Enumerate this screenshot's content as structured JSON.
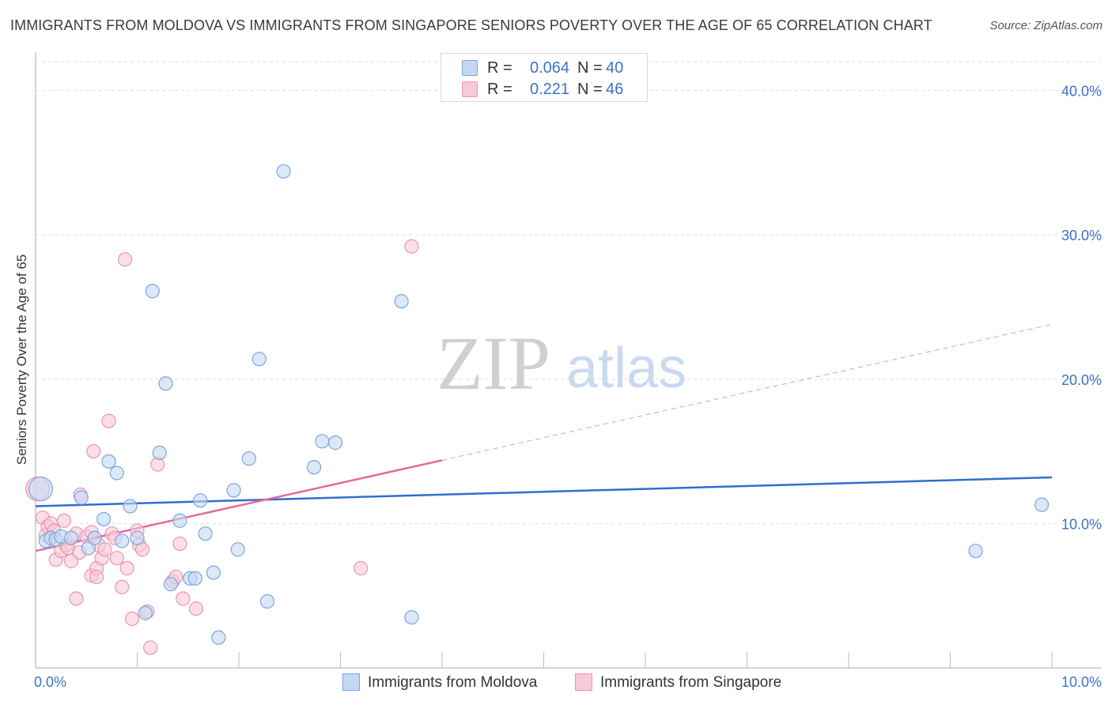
{
  "header": {
    "title": "IMMIGRANTS FROM MOLDOVA VS IMMIGRANTS FROM SINGAPORE SENIORS POVERTY OVER THE AGE OF 65 CORRELATION CHART",
    "source": "Source: ZipAtlas.com"
  },
  "watermark": {
    "zip": "ZIP",
    "atlas": "atlas"
  },
  "legend": {
    "r_label": "R =",
    "n_label": "N =",
    "series": [
      {
        "name": "Immigrants from Moldova",
        "r": "0.064",
        "n": "40"
      },
      {
        "name": "Immigrants from Singapore",
        "r": "0.221",
        "n": "46"
      }
    ]
  },
  "chart_data": {
    "type": "scatter",
    "title": "IMMIGRANTS FROM MOLDOVA VS IMMIGRANTS FROM SINGAPORE SENIORS POVERTY OVER THE AGE OF 65 CORRELATION CHART",
    "xlabel": "",
    "ylabel": "Seniors Poverty Over the Age of 65",
    "xlim": [
      0,
      10
    ],
    "ylim": [
      0,
      42
    ],
    "x_tick_labels": [
      "0.0%",
      "10.0%"
    ],
    "y_ticks": [
      10,
      20,
      30,
      40
    ],
    "y_tick_labels": [
      "10.0%",
      "20.0%",
      "30.0%",
      "40.0%"
    ],
    "grid": true,
    "legend_position": "top-center",
    "colors": {
      "moldova_fill": "#c5d8f3",
      "moldova_stroke": "#7aa5de",
      "moldova_line": "#2f6fcd",
      "singapore_fill": "#f8c9d8",
      "singapore_stroke": "#ec94b2",
      "singapore_line": "#e46b97",
      "axis_text": "#3a73c9",
      "grid": "#dddddd"
    },
    "series": [
      {
        "name": "Immigrants from Moldova",
        "trend": {
          "x0": 0,
          "y0": 11.2,
          "x1": 10,
          "y1": 13.2,
          "dashed_from": null
        },
        "points": [
          {
            "x": 0.05,
            "y": 12.4,
            "big": true
          },
          {
            "x": 0.1,
            "y": 8.8
          },
          {
            "x": 0.15,
            "y": 9.0
          },
          {
            "x": 0.2,
            "y": 8.9
          },
          {
            "x": 0.25,
            "y": 9.1
          },
          {
            "x": 0.35,
            "y": 9.0
          },
          {
            "x": 0.45,
            "y": 11.8
          },
          {
            "x": 0.52,
            "y": 8.3
          },
          {
            "x": 0.58,
            "y": 9.0
          },
          {
            "x": 0.67,
            "y": 10.3
          },
          {
            "x": 0.72,
            "y": 14.3
          },
          {
            "x": 0.8,
            "y": 13.5
          },
          {
            "x": 0.85,
            "y": 8.8
          },
          {
            "x": 0.93,
            "y": 11.2
          },
          {
            "x": 1.0,
            "y": 9.0
          },
          {
            "x": 1.08,
            "y": 3.8
          },
          {
            "x": 1.15,
            "y": 26.1
          },
          {
            "x": 1.22,
            "y": 14.9
          },
          {
            "x": 1.28,
            "y": 19.7
          },
          {
            "x": 1.33,
            "y": 5.8
          },
          {
            "x": 1.42,
            "y": 10.2
          },
          {
            "x": 1.52,
            "y": 6.2
          },
          {
            "x": 1.57,
            "y": 6.2
          },
          {
            "x": 1.62,
            "y": 11.6
          },
          {
            "x": 1.67,
            "y": 9.3
          },
          {
            "x": 1.75,
            "y": 6.6
          },
          {
            "x": 1.8,
            "y": 2.1
          },
          {
            "x": 1.95,
            "y": 12.3
          },
          {
            "x": 1.99,
            "y": 8.2
          },
          {
            "x": 2.1,
            "y": 14.5
          },
          {
            "x": 2.2,
            "y": 21.4
          },
          {
            "x": 2.28,
            "y": 4.6
          },
          {
            "x": 2.44,
            "y": 34.4
          },
          {
            "x": 2.74,
            "y": 13.9
          },
          {
            "x": 2.82,
            "y": 15.7
          },
          {
            "x": 2.95,
            "y": 15.6
          },
          {
            "x": 3.6,
            "y": 25.4
          },
          {
            "x": 3.7,
            "y": 3.5
          },
          {
            "x": 9.25,
            "y": 8.1
          },
          {
            "x": 9.9,
            "y": 11.3
          }
        ]
      },
      {
        "name": "Immigrants from Singapore",
        "trend": {
          "x0": 0,
          "y0": 8.1,
          "x1": 10,
          "y1": 23.8,
          "dashed_from": 4.0
        },
        "points": [
          {
            "x": 0.02,
            "y": 12.4,
            "big": true
          },
          {
            "x": 0.07,
            "y": 10.4
          },
          {
            "x": 0.1,
            "y": 9.2
          },
          {
            "x": 0.12,
            "y": 9.8
          },
          {
            "x": 0.15,
            "y": 10.0
          },
          {
            "x": 0.18,
            "y": 9.5
          },
          {
            "x": 0.2,
            "y": 7.5
          },
          {
            "x": 0.25,
            "y": 8.1
          },
          {
            "x": 0.28,
            "y": 10.2
          },
          {
            "x": 0.3,
            "y": 8.5
          },
          {
            "x": 0.32,
            "y": 8.3
          },
          {
            "x": 0.35,
            "y": 7.4
          },
          {
            "x": 0.4,
            "y": 9.3
          },
          {
            "x": 0.43,
            "y": 8.0
          },
          {
            "x": 0.4,
            "y": 4.8
          },
          {
            "x": 0.44,
            "y": 12.0
          },
          {
            "x": 0.5,
            "y": 9.1
          },
          {
            "x": 0.55,
            "y": 9.4
          },
          {
            "x": 0.55,
            "y": 6.4
          },
          {
            "x": 0.57,
            "y": 15.0
          },
          {
            "x": 0.6,
            "y": 6.9
          },
          {
            "x": 0.6,
            "y": 6.3
          },
          {
            "x": 0.62,
            "y": 8.5
          },
          {
            "x": 0.65,
            "y": 7.6
          },
          {
            "x": 0.68,
            "y": 8.2
          },
          {
            "x": 0.72,
            "y": 17.1
          },
          {
            "x": 0.75,
            "y": 9.3
          },
          {
            "x": 0.78,
            "y": 9.0
          },
          {
            "x": 0.8,
            "y": 7.6
          },
          {
            "x": 0.85,
            "y": 5.6
          },
          {
            "x": 0.9,
            "y": 6.9
          },
          {
            "x": 0.95,
            "y": 3.4
          },
          {
            "x": 1.02,
            "y": 8.5
          },
          {
            "x": 1.0,
            "y": 9.5
          },
          {
            "x": 1.05,
            "y": 8.2
          },
          {
            "x": 1.1,
            "y": 3.9
          },
          {
            "x": 1.13,
            "y": 1.4
          },
          {
            "x": 1.2,
            "y": 14.1
          },
          {
            "x": 1.35,
            "y": 6.0
          },
          {
            "x": 1.38,
            "y": 6.3
          },
          {
            "x": 1.42,
            "y": 8.6
          },
          {
            "x": 1.45,
            "y": 4.8
          },
          {
            "x": 1.58,
            "y": 4.1
          },
          {
            "x": 3.2,
            "y": 6.9
          },
          {
            "x": 3.7,
            "y": 29.2
          },
          {
            "x": 0.88,
            "y": 28.3
          }
        ]
      }
    ]
  }
}
